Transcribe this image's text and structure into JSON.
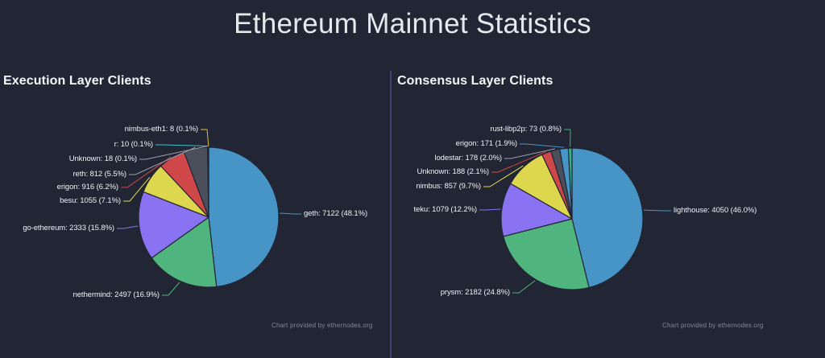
{
  "header": {
    "title": "Ethereum Mainnet Statistics"
  },
  "theme": {
    "background": "#222634",
    "divider": "#3d4270",
    "title_color": "#e5e8ec",
    "section_title_color": "#f4f6f8",
    "label_color": "#eef1f4",
    "attribution_color": "#828896",
    "slice_outline": "#222634"
  },
  "chart_data": [
    {
      "type": "pie",
      "title": "Execution Layer Clients",
      "attribution": "Chart provided by ethernodes.org",
      "legend_position": "callout-labels",
      "slices": [
        {
          "name": "geth",
          "value": 7122,
          "percent": 48.1,
          "display": "geth: 7122 (48.1%)",
          "color": "#4795c7",
          "line_color": "#4795c7"
        },
        {
          "name": "nethermind",
          "value": 2497,
          "percent": 16.9,
          "display": "nethermind: 2497 (16.9%)",
          "color": "#50b47e",
          "line_color": "#50b47e"
        },
        {
          "name": "go-ethereum",
          "value": 2333,
          "percent": 15.8,
          "display": "go-ethereum: 2333 (15.8%)",
          "color": "#8a73f3",
          "line_color": "#8a73f3"
        },
        {
          "name": "besu",
          "value": 1055,
          "percent": 7.1,
          "display": "besu: 1055 (7.1%)",
          "color": "#ddd74d",
          "line_color": "#ddd74d"
        },
        {
          "name": "erigon",
          "value": 916,
          "percent": 6.2,
          "display": "erigon: 916 (6.2%)",
          "color": "#cf4749",
          "line_color": "#cf4749"
        },
        {
          "name": "reth",
          "value": 812,
          "percent": 5.5,
          "display": "reth: 812 (5.5%)",
          "color": "#4a4f5b",
          "line_color": "#9aa0ae"
        },
        {
          "name": "Unknown",
          "value": 18,
          "percent": 0.1,
          "display": "Unknown: 18 (0.1%)",
          "color": "#9aa0ae",
          "line_color": "#9aa0ae"
        },
        {
          "name": "r",
          "value": 10,
          "percent": 0.1,
          "display": "r: 10 (0.1%)",
          "color": "#3fbfc9",
          "line_color": "#3fbfc9"
        },
        {
          "name": "nimbus-eth1",
          "value": 8,
          "percent": 0.1,
          "display": "nimbus-eth1: 8 (0.1%)",
          "color": "#ddd74d",
          "line_color": "#d6c24a"
        }
      ]
    },
    {
      "type": "pie",
      "title": "Consensus Layer Clients",
      "attribution": "Chart provided by ethernodes.org",
      "legend_position": "callout-labels",
      "slices": [
        {
          "name": "lighthouse",
          "value": 4050,
          "percent": 46.0,
          "display": "lighthouse: 4050 (46.0%)",
          "color": "#4795c7",
          "line_color": "#4795c7"
        },
        {
          "name": "prysm",
          "value": 2182,
          "percent": 24.8,
          "display": "prysm: 2182 (24.8%)",
          "color": "#50b47e",
          "line_color": "#50b47e"
        },
        {
          "name": "teku",
          "value": 1079,
          "percent": 12.2,
          "display": "teku: 1079 (12.2%)",
          "color": "#8a73f3",
          "line_color": "#8a73f3"
        },
        {
          "name": "nimbus",
          "value": 857,
          "percent": 9.7,
          "display": "nimbus: 857 (9.7%)",
          "color": "#ddd74d",
          "line_color": "#ddd74d"
        },
        {
          "name": "Unknown",
          "value": 188,
          "percent": 2.1,
          "display": "Unknown: 188 (2.1%)",
          "color": "#cf4749",
          "line_color": "#cf4749"
        },
        {
          "name": "lodestar",
          "value": 178,
          "percent": 2.0,
          "display": "lodestar: 178 (2.0%)",
          "color": "#4a4f5b",
          "line_color": "#9aa0ae"
        },
        {
          "name": "erigon",
          "value": 171,
          "percent": 1.9,
          "display": "erigon: 171 (1.9%)",
          "color": "#4795c7",
          "line_color": "#4795c7"
        },
        {
          "name": "rust-libp2p",
          "value": 73,
          "percent": 0.8,
          "display": "rust-libp2p: 73 (0.8%)",
          "color": "#35b286",
          "line_color": "#35b286"
        }
      ]
    }
  ]
}
